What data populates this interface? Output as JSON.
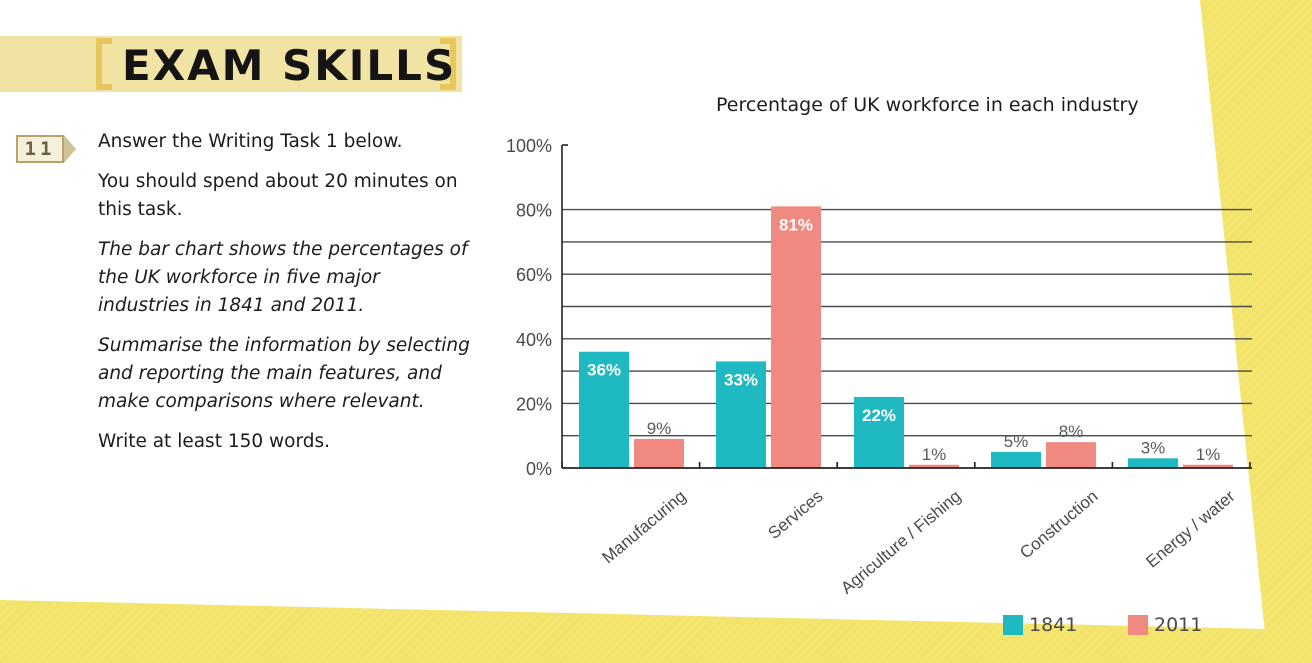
{
  "header": {
    "title": "EXAM SKILLS"
  },
  "task": {
    "number": "11",
    "line1": "Answer the Writing Task 1 below.",
    "line2": "You should spend about 20 minutes on this task.",
    "prompt1": "The bar chart shows the percentages of the UK workforce in five major industries in 1841 and 2011.",
    "prompt2": "Summarise the information by selecting and reporting the main features, and make comparisons where relevant.",
    "line3": "Write at least 150 words."
  },
  "colors": {
    "series_1841": "#1eb9c1",
    "series_2011": "#f08a80",
    "accent": "#e7c65b"
  },
  "chart_data": {
    "type": "bar",
    "title": "Percentage of UK workforce in each industry",
    "categories": [
      "Manufacuring",
      "Services",
      "Agriculture / Fishing",
      "Construction",
      "Energy / water"
    ],
    "series": [
      {
        "name": "1841",
        "values": [
          36,
          33,
          22,
          5,
          3
        ],
        "labels": [
          "36%",
          "33%",
          "22%",
          "5%",
          "3%"
        ]
      },
      {
        "name": "2011",
        "values": [
          9,
          81,
          1,
          8,
          1
        ],
        "labels": [
          "9%",
          "81%",
          "1%",
          "8%",
          "1%"
        ]
      }
    ],
    "yticks": [
      "0%",
      "20%",
      "40%",
      "60%",
      "80%",
      "100%"
    ],
    "ylim": [
      0,
      100
    ],
    "grid": true,
    "legend": "bottom-right"
  }
}
